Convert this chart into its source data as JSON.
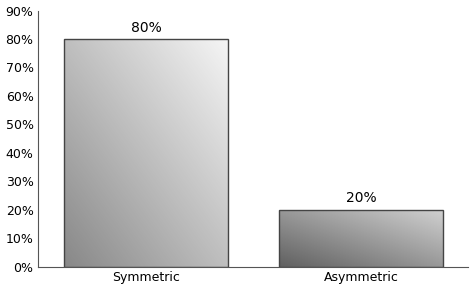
{
  "categories": [
    "Symmetric",
    "Asymmetric"
  ],
  "values": [
    80,
    20
  ],
  "labels": [
    "80%",
    "20%"
  ],
  "ylim": [
    0,
    90
  ],
  "yticks": [
    0,
    10,
    20,
    30,
    40,
    50,
    60,
    70,
    80,
    90
  ],
  "ytick_labels": [
    "0%",
    "10%",
    "20%",
    "30%",
    "40%",
    "50%",
    "60%",
    "70%",
    "80%",
    "90%"
  ],
  "background_color": "#ffffff",
  "bar1_color_light": "#f5f5f5",
  "bar1_color_dark": "#888888",
  "bar2_color_light": "#d0d0d0",
  "bar2_color_dark": "#606060",
  "label_fontsize": 10,
  "tick_fontsize": 9,
  "bar_edge_color": "#444444",
  "bar_edge_width": 1.0,
  "x_positions": [
    0.25,
    0.75
  ],
  "bar_width": 0.38
}
